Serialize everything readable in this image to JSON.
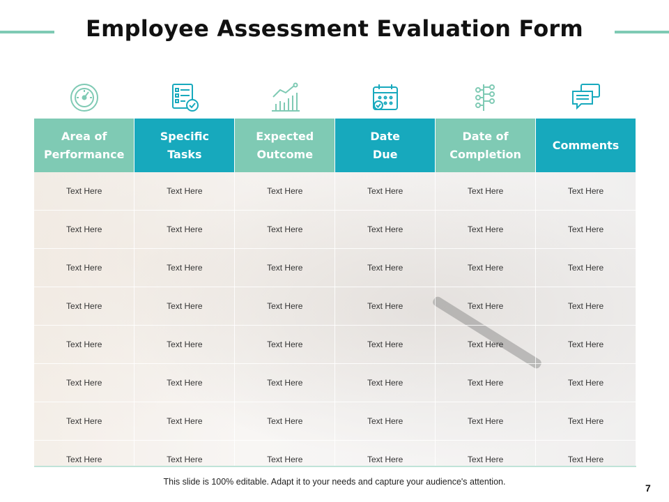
{
  "title": "Employee Assessment Evaluation Form",
  "colors": {
    "accent_green": "#7fcab4",
    "accent_blue": "#17a9bd"
  },
  "icons": [
    "speedometer-icon",
    "checklist-icon",
    "growth-chart-icon",
    "calendar-icon",
    "hierarchy-icon",
    "chat-bubbles-icon"
  ],
  "table": {
    "headers": [
      {
        "line1": "Area of",
        "line2": "Performance"
      },
      {
        "line1": "Specific",
        "line2": "Tasks"
      },
      {
        "line1": "Expected",
        "line2": "Outcome"
      },
      {
        "line1": "Date",
        "line2": "Due"
      },
      {
        "line1": "Date of",
        "line2": "Completion"
      },
      {
        "line1": "Comments",
        "line2": ""
      }
    ],
    "rows": [
      [
        "Text Here",
        "Text Here",
        "Text Here",
        "Text Here",
        "Text Here",
        "Text Here"
      ],
      [
        "Text Here",
        "Text Here",
        "Text Here",
        "Text Here",
        "Text Here",
        "Text Here"
      ],
      [
        "Text Here",
        "Text Here",
        "Text Here",
        "Text Here",
        "Text Here",
        "Text Here"
      ],
      [
        "Text Here",
        "Text Here",
        "Text Here",
        "Text Here",
        "Text Here",
        "Text Here"
      ],
      [
        "Text Here",
        "Text Here",
        "Text Here",
        "Text Here",
        "Text Here",
        "Text Here"
      ],
      [
        "Text Here",
        "Text Here",
        "Text Here",
        "Text Here",
        "Text Here",
        "Text Here"
      ],
      [
        "Text Here",
        "Text Here",
        "Text Here",
        "Text Here",
        "Text Here",
        "Text Here"
      ],
      [
        "Text Here",
        "Text Here",
        "Text Here",
        "Text Here",
        "Text Here",
        "Text Here"
      ]
    ]
  },
  "footer": "This slide is 100% editable. Adapt it to your needs and capture your audience's attention.",
  "page_number": "7"
}
